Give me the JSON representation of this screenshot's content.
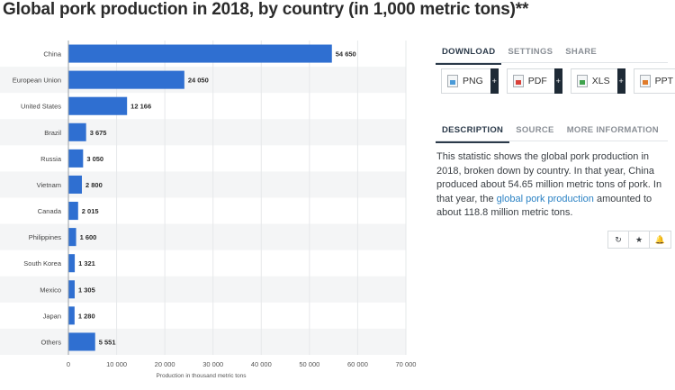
{
  "page": {
    "title": "Global pork production in 2018, by country (in 1,000 metric tons)**"
  },
  "chart_data": {
    "type": "bar",
    "orientation": "horizontal",
    "categories": [
      "China",
      "European Union",
      "United States",
      "Brazil",
      "Russia",
      "Vietnam",
      "Canada",
      "Philippines",
      "South Korea",
      "Mexico",
      "Japan",
      "Others"
    ],
    "values": [
      54650,
      24050,
      12166,
      3675,
      3050,
      2800,
      2015,
      1600,
      1321,
      1305,
      1280,
      5551
    ],
    "value_labels": [
      "54 650",
      "24 050",
      "12 166",
      "3 675",
      "3 050",
      "2 800",
      "2 015",
      "1 600",
      "1 321",
      "1 305",
      "1 280",
      "5 551"
    ],
    "xlabel": "Production in thousand metric tons",
    "ylabel": "",
    "xlim": [
      0,
      70000
    ],
    "ticks": [
      0,
      10000,
      20000,
      30000,
      40000,
      50000,
      60000,
      70000
    ],
    "tick_labels": [
      "0",
      "10 000",
      "20 000",
      "30 000",
      "40 000",
      "50 000",
      "60 000",
      "70 000"
    ],
    "bar_color": "#2f6fd1",
    "alt_row_color": "#f4f5f6",
    "grid": true
  },
  "panel": {
    "download_tabs": [
      "DOWNLOAD",
      "SETTINGS",
      "SHARE"
    ],
    "download_buttons": [
      {
        "label": "PNG",
        "icon": "png-file-icon"
      },
      {
        "label": "PDF",
        "icon": "pdf-file-icon"
      },
      {
        "label": "XLS",
        "icon": "xls-file-icon"
      },
      {
        "label": "PPT",
        "icon": "ppt-file-icon"
      }
    ],
    "plus_glyph": "+",
    "info_tabs": [
      "DESCRIPTION",
      "SOURCE",
      "MORE INFORMATION"
    ],
    "description_pre": "This statistic shows the global pork production in 2018, broken down by country. In that year, China produced about 54.65 million metric tons of pork. In that year, the ",
    "description_link": "global pork production",
    "description_post": " amounted to about 118.8 million metric tons.",
    "action_icons": [
      {
        "name": "history-icon",
        "glyph": "↻"
      },
      {
        "name": "star-icon",
        "glyph": "★"
      },
      {
        "name": "bell-icon",
        "glyph": "🔔"
      }
    ]
  }
}
